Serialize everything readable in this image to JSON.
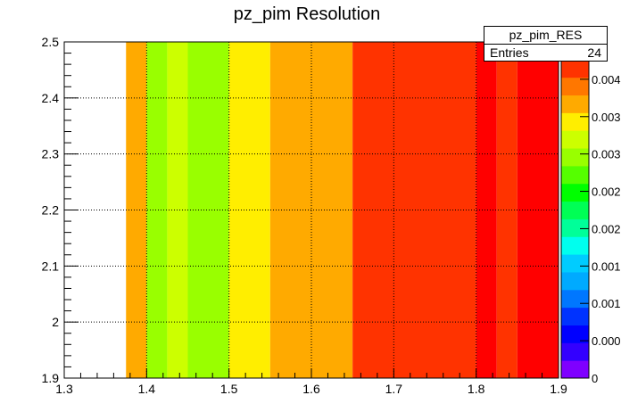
{
  "chart_data": {
    "type": "heatmap",
    "title": "pz_pim Resolution",
    "xlabel": "",
    "ylabel": "",
    "xlim": [
      1.3,
      1.9
    ],
    "ylim": [
      1.9,
      2.5
    ],
    "zlim": [
      0,
      0.0045
    ],
    "x_ticks": [
      "1.3",
      "1.4",
      "1.5",
      "1.6",
      "1.7",
      "1.8",
      "1.9"
    ],
    "y_ticks": [
      "1.9",
      "2",
      "2.1",
      "2.2",
      "2.3",
      "2.4",
      "2.5"
    ],
    "z_ticks": [
      "0",
      "0.0005",
      "0.001",
      "0.0015",
      "0.002",
      "0.0025",
      "0.003",
      "0.0035",
      "0.004"
    ],
    "z_tick_labels_displayed": [
      "0",
      "0.000",
      "0.001",
      "0.001",
      "0.002",
      "0.002",
      "0.003",
      "0.003",
      "0.004"
    ],
    "grid": true,
    "columns": [
      {
        "x0": 1.375,
        "x1": 1.4,
        "z": 0.0034,
        "color": "#ffaa00"
      },
      {
        "x0": 1.4,
        "x1": 1.425,
        "z": 0.0024,
        "color": "#99ff00"
      },
      {
        "x0": 1.425,
        "x1": 1.45,
        "z": 0.0027,
        "color": "#ccff00"
      },
      {
        "x0": 1.45,
        "x1": 1.5,
        "z": 0.0025,
        "color": "#99ff00"
      },
      {
        "x0": 1.5,
        "x1": 1.55,
        "z": 0.003,
        "color": "#ffee00"
      },
      {
        "x0": 1.55,
        "x1": 1.65,
        "z": 0.0034,
        "color": "#ffaa00"
      },
      {
        "x0": 1.65,
        "x1": 1.8,
        "z": 0.0042,
        "color": "#ff3300"
      },
      {
        "x0": 1.8,
        "x1": 1.825,
        "z": 0.0044,
        "color": "#ff0000"
      },
      {
        "x0": 1.825,
        "x1": 1.85,
        "z": 0.0042,
        "color": "#ff3300"
      },
      {
        "x0": 1.85,
        "x1": 1.9,
        "z": 0.0044,
        "color": "#ff0000"
      }
    ],
    "palette": [
      "#7f00ff",
      "#3300ff",
      "#0000ff",
      "#0033ff",
      "#0077ff",
      "#00aaff",
      "#00ccff",
      "#00ffee",
      "#00ff99",
      "#00ff55",
      "#00ff00",
      "#55ff00",
      "#99ff00",
      "#ccff00",
      "#ffee00",
      "#ffaa00",
      "#ff7700",
      "#ff3300",
      "#ff0000"
    ]
  },
  "stats": {
    "name": "pz_pim_RES",
    "entries_label": "Entries",
    "entries_value": "24"
  }
}
